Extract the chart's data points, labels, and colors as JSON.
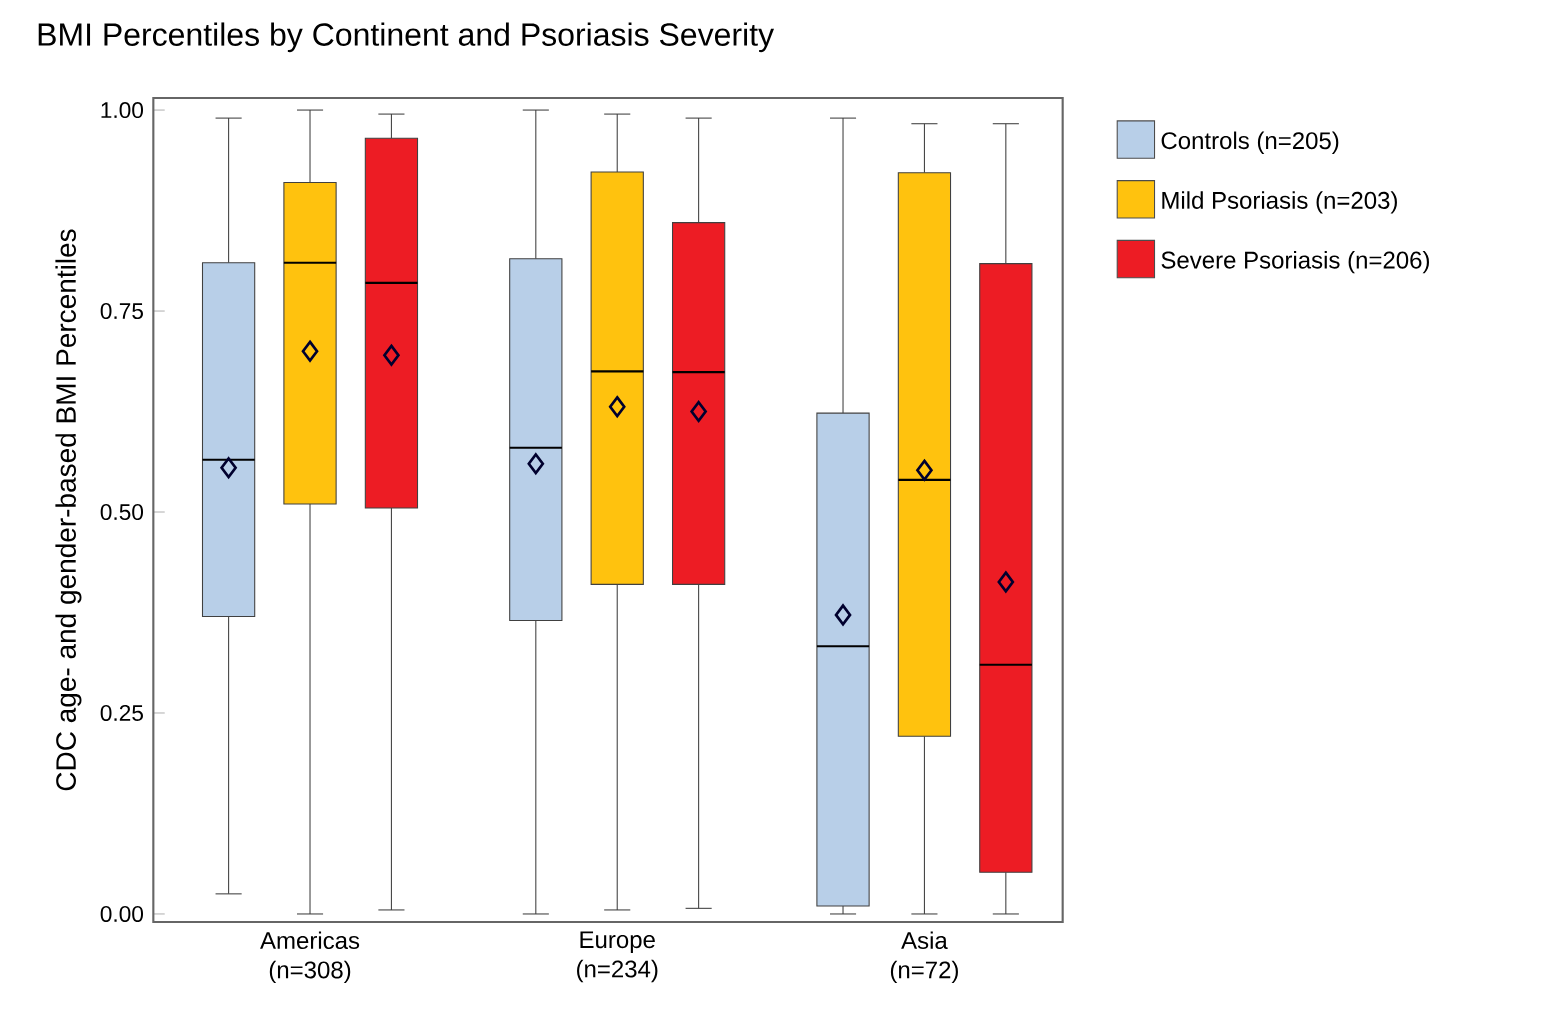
{
  "chart_data": {
    "type": "box",
    "title": "BMI Percentiles by Continent and Psoriasis Severity",
    "ylabel": "CDC age- and gender-based  BMI Percentiles",
    "categories": [
      "Americas (n=308)",
      "Europe (n=234)",
      "Asia (n=72)"
    ],
    "ylim": [
      -0.01,
      1.015
    ],
    "yticks": [
      {
        "value": 0,
        "label": "0.00"
      },
      {
        "value": 0.25,
        "label": "0.25"
      },
      {
        "value": 0.5,
        "label": "0.50"
      },
      {
        "value": 0.75,
        "label": "0.75"
      },
      {
        "value": 1,
        "label": "1.00"
      }
    ],
    "legend": "right",
    "marker": "diamond",
    "series": [
      {
        "name": "Controls (n=205)",
        "color": "#b8cfe8",
        "boxes": [
          {
            "low": 0.025,
            "q1": 0.37,
            "median": 0.565,
            "q3": 0.81,
            "high": 0.99,
            "mean": 0.555
          },
          {
            "low": 0.0,
            "q1": 0.365,
            "median": 0.58,
            "q3": 0.815,
            "high": 1.0,
            "mean": 0.56
          },
          {
            "low": 0.0,
            "q1": 0.01,
            "median": 0.333,
            "q3": 0.623,
            "high": 0.99,
            "mean": 0.372
          }
        ]
      },
      {
        "name": "Mild Psoriasis (n=203)",
        "color": "#ffc20e",
        "boxes": [
          {
            "low": 0.0,
            "q1": 0.51,
            "median": 0.81,
            "q3": 0.91,
            "high": 1.0,
            "mean": 0.7
          },
          {
            "low": 0.005,
            "q1": 0.41,
            "median": 0.675,
            "q3": 0.923,
            "high": 0.995,
            "mean": 0.631
          },
          {
            "low": 0.0,
            "q1": 0.221,
            "median": 0.54,
            "q3": 0.922,
            "high": 0.983,
            "mean": 0.552
          }
        ]
      },
      {
        "name": "Severe Psoriasis (n=206)",
        "color": "#ed1c24",
        "boxes": [
          {
            "low": 0.005,
            "q1": 0.505,
            "median": 0.785,
            "q3": 0.965,
            "high": 0.995,
            "mean": 0.695
          },
          {
            "low": 0.007,
            "q1": 0.41,
            "median": 0.674,
            "q3": 0.86,
            "high": 0.99,
            "mean": 0.625
          },
          {
            "low": 0.0,
            "q1": 0.052,
            "median": 0.31,
            "q3": 0.809,
            "high": 0.983,
            "mean": 0.413
          }
        ]
      }
    ]
  }
}
